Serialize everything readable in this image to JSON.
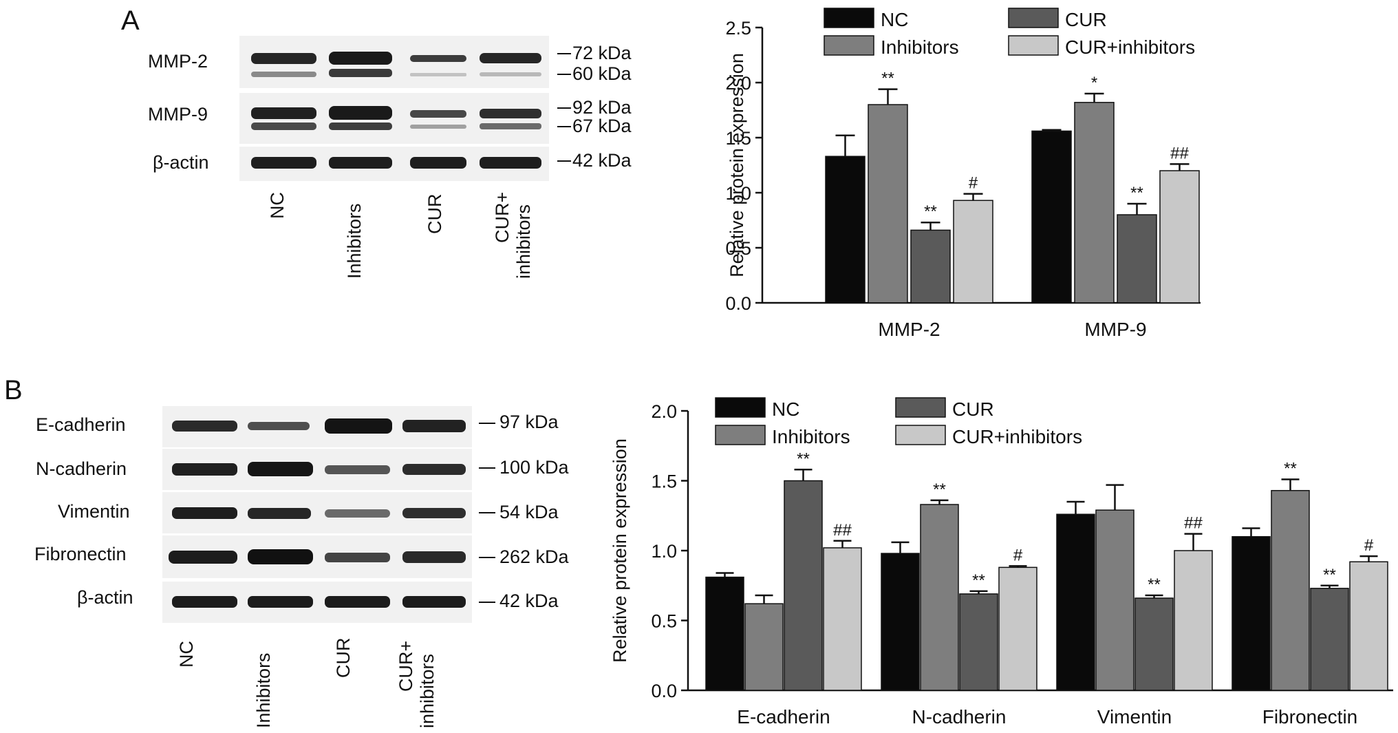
{
  "panels": [
    {
      "letter": "A",
      "blot": {
        "proteins": [
          "MMP-2",
          "MMP-9",
          "β-actin"
        ],
        "kda": [
          "72 kDa",
          "60 kDa",
          "92 kDa",
          "67 kDa",
          "42 kDa"
        ],
        "lanes": [
          "NC",
          "Inhibitors",
          "CUR",
          "CUR+",
          "inhibitors"
        ]
      }
    },
    {
      "letter": "B",
      "blot": {
        "proteins": [
          "E-cadherin",
          "N-cadherin",
          "Vimentin",
          "Fibronectin",
          "β-actin"
        ],
        "kda": [
          "97 kDa",
          "100 kDa",
          "54 kDa",
          "262 kDa",
          "42 kDa"
        ],
        "lanes": [
          "NC",
          "Inhibitors",
          "CUR",
          "CUR+",
          "inhibitors"
        ]
      }
    }
  ],
  "chart_data": [
    {
      "type": "bar",
      "ylabel": "Relative protein expression",
      "xlabel": "",
      "ylim": [
        0,
        2.5
      ],
      "yticks": [
        "0.0",
        "0.5",
        "1.0",
        "1.5",
        "2.0",
        "2.5"
      ],
      "categories": [
        "MMP-2",
        "MMP-9"
      ],
      "legend_position": "top",
      "series": [
        {
          "name": "NC",
          "color": "#0a0a0a",
          "values": [
            1.33,
            1.56
          ],
          "errors": [
            0.19,
            0.01
          ],
          "marks": [
            "",
            ""
          ]
        },
        {
          "name": "Inhibitors",
          "color": "#7e7e7e",
          "values": [
            1.8,
            1.82
          ],
          "errors": [
            0.14,
            0.08
          ],
          "marks": [
            "**",
            "*"
          ]
        },
        {
          "name": "CUR",
          "color": "#5a5a5a",
          "values": [
            0.66,
            0.8
          ],
          "errors": [
            0.07,
            0.1
          ],
          "marks": [
            "**",
            "**"
          ]
        },
        {
          "name": "CUR+inhibitors",
          "color": "#c8c8c8",
          "values": [
            0.93,
            1.2
          ],
          "errors": [
            0.06,
            0.06
          ],
          "marks": [
            "#",
            "##"
          ]
        }
      ]
    },
    {
      "type": "bar",
      "ylabel": "Relative protein expression",
      "xlabel": "",
      "ylim": [
        0,
        2.0
      ],
      "yticks": [
        "0.0",
        "0.5",
        "1.0",
        "1.5",
        "2.0"
      ],
      "categories": [
        "E-cadherin",
        "N-cadherin",
        "Vimentin",
        "Fibronectin"
      ],
      "legend_position": "top",
      "series": [
        {
          "name": "NC",
          "color": "#0a0a0a",
          "values": [
            0.81,
            0.98,
            1.26,
            1.1
          ],
          "errors": [
            0.03,
            0.08,
            0.09,
            0.06
          ],
          "marks": [
            "",
            "",
            "",
            ""
          ]
        },
        {
          "name": "Inhibitors",
          "color": "#7e7e7e",
          "values": [
            0.62,
            1.33,
            1.29,
            1.43
          ],
          "errors": [
            0.06,
            0.03,
            0.18,
            0.08
          ],
          "marks": [
            "",
            "**",
            "",
            "**"
          ]
        },
        {
          "name": "CUR",
          "color": "#5a5a5a",
          "values": [
            1.5,
            0.69,
            0.66,
            0.73
          ],
          "errors": [
            0.08,
            0.02,
            0.02,
            0.02
          ],
          "marks": [
            "**",
            "**",
            "**",
            "**"
          ]
        },
        {
          "name": "CUR+inhibitors",
          "color": "#c8c8c8",
          "values": [
            1.02,
            0.88,
            1.0,
            0.92
          ],
          "errors": [
            0.05,
            0.01,
            0.12,
            0.04
          ],
          "marks": [
            "##",
            "#",
            "##",
            "#"
          ]
        }
      ]
    }
  ]
}
